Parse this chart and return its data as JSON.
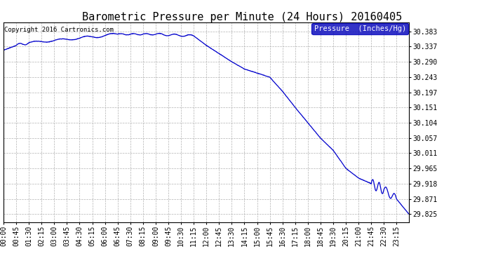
{
  "title": "Barometric Pressure per Minute (24 Hours) 20160405",
  "copyright": "Copyright 2016 Cartronics.com",
  "legend_label": "Pressure  (Inches/Hg)",
  "yticks": [
    30.383,
    30.337,
    30.29,
    30.243,
    30.197,
    30.151,
    30.104,
    30.057,
    30.011,
    29.965,
    29.918,
    29.871,
    29.825
  ],
  "ymin": 29.8,
  "ymax": 30.41,
  "line_color": "#0000CC",
  "background_color": "#ffffff",
  "grid_color": "#aaaaaa",
  "xtick_labels": [
    "00:00",
    "00:45",
    "01:30",
    "02:15",
    "03:00",
    "03:45",
    "04:30",
    "05:15",
    "06:00",
    "06:45",
    "07:30",
    "08:15",
    "09:00",
    "09:45",
    "10:30",
    "11:15",
    "12:00",
    "12:45",
    "13:30",
    "14:15",
    "15:00",
    "15:45",
    "16:30",
    "17:15",
    "18:00",
    "18:45",
    "19:30",
    "20:15",
    "21:00",
    "21:45",
    "22:30",
    "23:15"
  ],
  "title_fontsize": 11,
  "tick_fontsize": 7,
  "copyright_fontsize": 6.5,
  "legend_fontsize": 7.5
}
